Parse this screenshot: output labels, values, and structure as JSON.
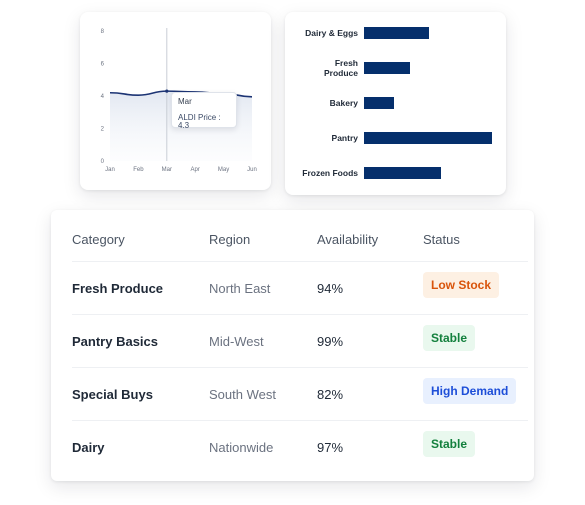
{
  "line_chart": {
    "chart_data": {
      "type": "area",
      "x": [
        "Jan",
        "Feb",
        "Mar",
        "Apr",
        "May",
        "Jun"
      ],
      "series": [
        {
          "name": "ALDI Price",
          "values": [
            4.2,
            4.05,
            4.3,
            4.25,
            4.15,
            3.95
          ]
        }
      ],
      "ylim": [
        0,
        8
      ],
      "yticks": [
        0,
        2,
        4,
        6,
        8
      ],
      "grid": false
    },
    "tooltip": {
      "label": "Mar",
      "text": "ALDI Price : 4.3"
    },
    "colors": {
      "line": "#1c3474",
      "cursor": "#c9ced6"
    }
  },
  "bar_chart": {
    "chart_data": {
      "type": "bar",
      "orientation": "horizontal",
      "categories": [
        "Dairy & Eggs",
        "Fresh Produce",
        "Bakery",
        "Pantry",
        "Frozen Foods"
      ],
      "category_lines": [
        [
          "Dairy & Eggs"
        ],
        [
          "Fresh",
          "Produce"
        ],
        [
          "Bakery"
        ],
        [
          "Pantry"
        ],
        [
          "Frozen Foods"
        ]
      ],
      "values": [
        65,
        46,
        30,
        128,
        77
      ],
      "xlim": [
        0,
        128
      ]
    },
    "colors": {
      "bar": "#052f6c"
    }
  },
  "table": {
    "headers": {
      "category": "Category",
      "region": "Region",
      "availability": "Availability",
      "status": "Status"
    },
    "rows": [
      {
        "category": "Fresh Produce",
        "region": "North East",
        "availability": "94%",
        "status": "Low Stock"
      },
      {
        "category": "Pantry Basics",
        "region": "Mid-West",
        "availability": "99%",
        "status": "Stable"
      },
      {
        "category": "Special Buys",
        "region": "South West",
        "availability": "82%",
        "status": "High Demand"
      },
      {
        "category": "Dairy",
        "region": "Nationwide",
        "availability": "97%",
        "status": "Stable"
      }
    ],
    "status_colors": {
      "Low Stock": {
        "text": "#d9540b",
        "bg": "#fdf0e3"
      },
      "Stable": {
        "text": "#13803d",
        "bg": "#e9f8ee"
      },
      "High Demand": {
        "text": "#1d4ed8",
        "bg": "#e8f0fe"
      }
    }
  }
}
